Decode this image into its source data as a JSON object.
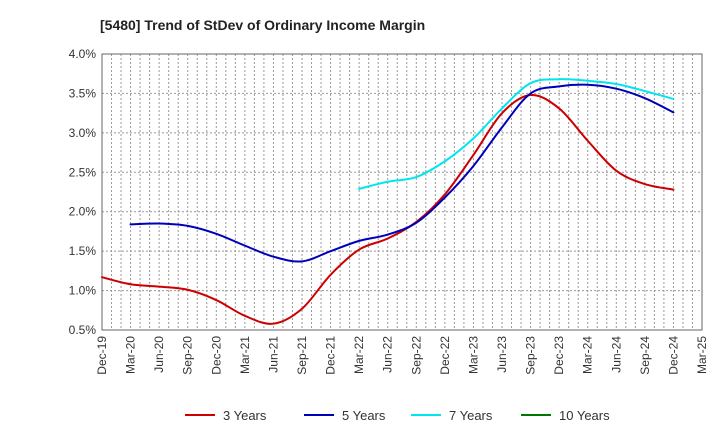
{
  "chart_data": {
    "type": "line",
    "title": "[5480]  Trend of StDev of Ordinary Income Margin",
    "xlabel": "",
    "ylabel": "",
    "x_categories": [
      "Dec-19",
      "Mar-20",
      "Jun-20",
      "Sep-20",
      "Dec-20",
      "Mar-21",
      "Jun-21",
      "Sep-21",
      "Dec-21",
      "Mar-22",
      "Jun-22",
      "Sep-22",
      "Dec-22",
      "Mar-23",
      "Jun-23",
      "Sep-23",
      "Dec-23",
      "Mar-24",
      "Jun-24",
      "Sep-24",
      "Dec-24",
      "Mar-25"
    ],
    "ylim": [
      0.5,
      4.0
    ],
    "y_ticks": [
      "0.5%",
      "1.0%",
      "1.5%",
      "2.0%",
      "2.5%",
      "3.0%",
      "3.5%",
      "4.0%"
    ],
    "y_tick_values": [
      0.5,
      1.0,
      1.5,
      2.0,
      2.5,
      3.0,
      3.5,
      4.0
    ],
    "grid": true,
    "legend_position": "bottom",
    "colors": {
      "3 Years": "#cc0000",
      "5 Years": "#0000bb",
      "7 Years": "#00e5ee",
      "10 Years": "#007700",
      "grid": "#999999",
      "axis": "#666666"
    },
    "series": [
      {
        "name": "3 Years",
        "color": "#cc0000",
        "values": [
          1.17,
          1.08,
          1.05,
          1.01,
          0.88,
          0.68,
          0.58,
          0.77,
          1.2,
          1.52,
          1.66,
          1.87,
          2.22,
          2.72,
          3.25,
          3.48,
          3.31,
          2.9,
          2.52,
          2.35,
          2.28,
          null
        ]
      },
      {
        "name": "5 Years",
        "color": "#0000bb",
        "values": [
          null,
          1.84,
          1.85,
          1.82,
          1.72,
          1.57,
          1.43,
          1.37,
          1.5,
          1.63,
          1.71,
          1.86,
          2.18,
          2.58,
          3.07,
          3.5,
          3.59,
          3.61,
          3.56,
          3.44,
          3.26,
          null
        ]
      },
      {
        "name": "7 Years",
        "color": "#00e5ee",
        "values": [
          null,
          null,
          null,
          null,
          null,
          null,
          null,
          null,
          null,
          2.29,
          2.38,
          2.44,
          2.64,
          2.93,
          3.31,
          3.63,
          3.68,
          3.66,
          3.62,
          3.53,
          3.43,
          null
        ]
      },
      {
        "name": "10 Years",
        "color": "#007700",
        "values": [
          null,
          null,
          null,
          null,
          null,
          null,
          null,
          null,
          null,
          null,
          null,
          null,
          null,
          null,
          null,
          null,
          null,
          null,
          null,
          null,
          null,
          null
        ]
      }
    ]
  }
}
